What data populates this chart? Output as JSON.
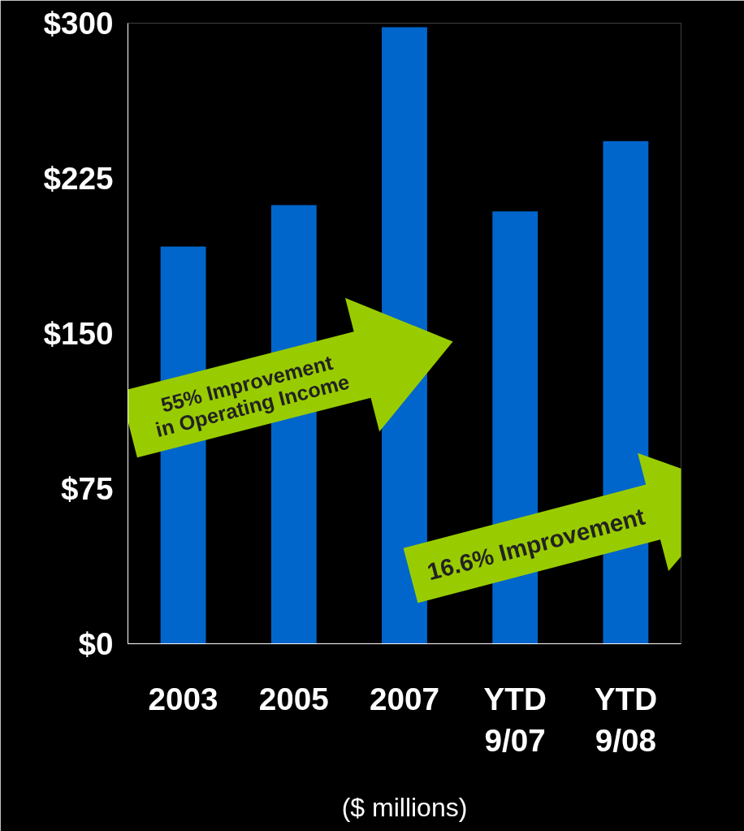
{
  "chart_data": {
    "type": "bar",
    "categories": [
      "2003",
      "2005",
      "2007",
      "YTD 9/07",
      "YTD 9/08"
    ],
    "values": [
      192,
      212,
      298,
      209,
      243
    ],
    "color": "#0066cc",
    "ylim": [
      0,
      300
    ],
    "yticks": [
      {
        "value": 0,
        "label": "$0"
      },
      {
        "value": 75,
        "label": "$75"
      },
      {
        "value": 150,
        "label": "$150"
      },
      {
        "value": 225,
        "label": "$225"
      },
      {
        "value": 300,
        "label": "$300"
      }
    ],
    "xlabel": "($ millions)",
    "grid": false,
    "annotations": [
      "55% Improvement\nin Operating Income",
      "16.6% Improvement"
    ]
  }
}
